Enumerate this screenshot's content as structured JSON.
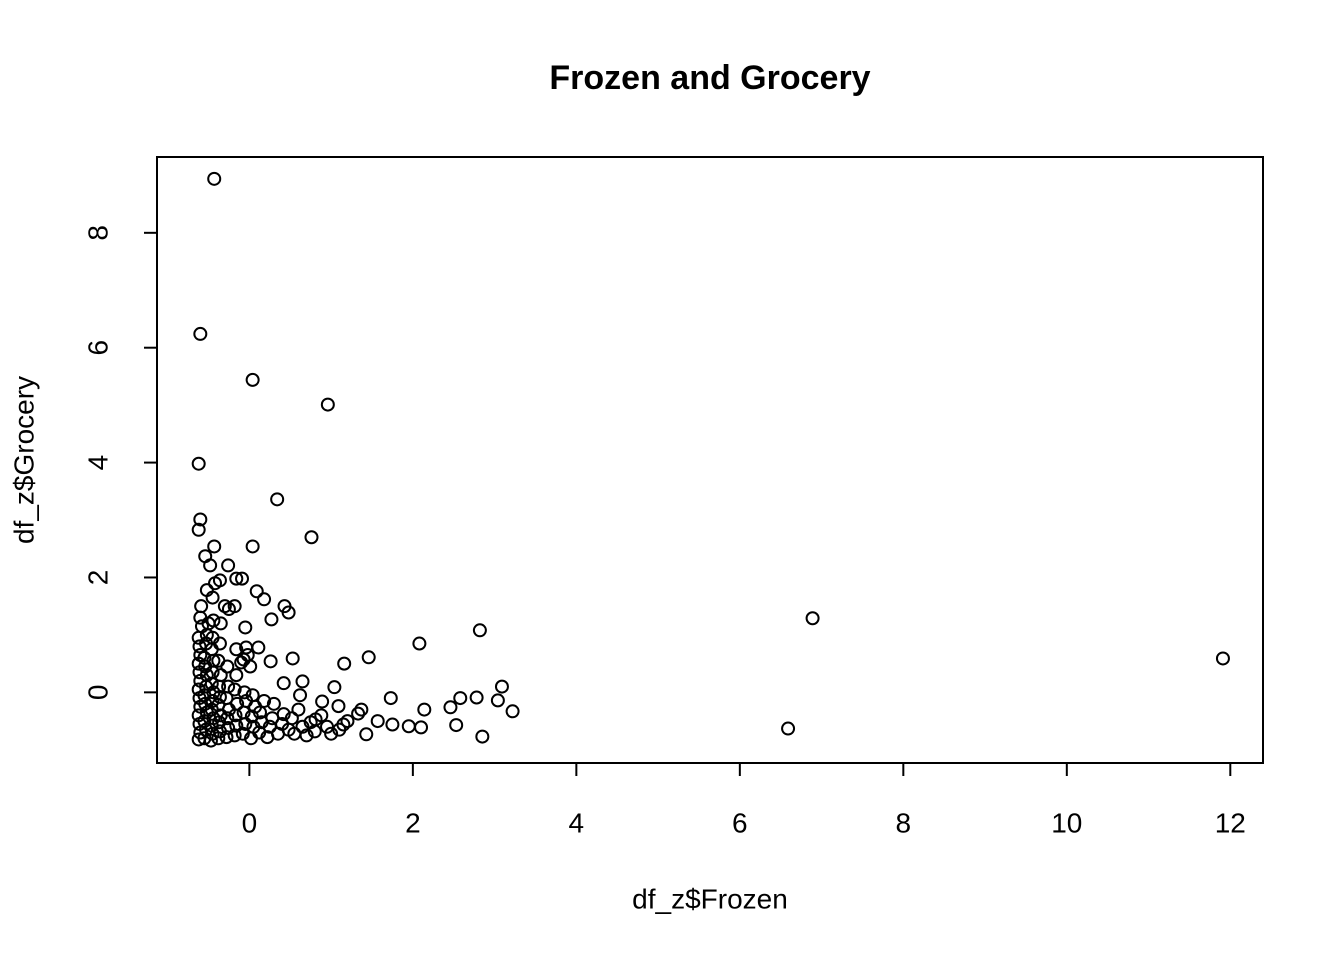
{
  "chart_data": {
    "type": "scatter",
    "title": "Frozen and Grocery",
    "x_label": "df_z$Frozen",
    "y_label": "df_z$Grocery",
    "color": "#000000",
    "x": [
      -0.43,
      -0.6,
      0.04,
      0.96,
      -0.62,
      0.34,
      -0.6,
      -0.62,
      0.76,
      -0.43,
      0.04,
      -0.54,
      -0.26,
      -0.48,
      -0.16,
      -0.09,
      -0.36,
      0.09,
      0.18,
      0.43,
      0.48,
      -0.18,
      0.27,
      2.08,
      2.82,
      6.89,
      11.91,
      6.59,
      1.46,
      1.16,
      0.53,
      3.09,
      2.78,
      2.58,
      1.73,
      3.04,
      3.22,
      2.46,
      2.14,
      2.53,
      2.85,
      1.95,
      2.1,
      1.75,
      1.57,
      1.43,
      1.04,
      1.37,
      1.33,
      1.15,
      1.09,
      0.89,
      0.81,
      0.65,
      0.62,
      0.26,
      0.11,
      0.01,
      -0.07,
      -0.04,
      -0.1,
      -0.16,
      -0.05,
      0.42,
      -0.62,
      -0.6,
      -0.61,
      -0.62,
      -0.6,
      -0.61,
      -0.62,
      -0.6,
      -0.61,
      -0.62,
      -0.6,
      -0.61,
      -0.62,
      -0.58,
      -0.6,
      -0.59,
      -0.55,
      -0.53,
      -0.55,
      -0.52,
      -0.54,
      -0.55,
      -0.53,
      -0.52,
      -0.54,
      -0.55,
      -0.53,
      -0.52,
      -0.5,
      -0.52,
      -0.47,
      -0.45,
      -0.46,
      -0.44,
      -0.46,
      -0.45,
      -0.44,
      -0.46,
      -0.45,
      -0.44,
      -0.46,
      -0.45,
      -0.44,
      -0.45,
      -0.42,
      -0.38,
      -0.36,
      -0.37,
      -0.35,
      -0.38,
      -0.36,
      -0.37,
      -0.35,
      -0.38,
      -0.36,
      -0.35,
      -0.28,
      -0.26,
      -0.27,
      -0.25,
      -0.28,
      -0.26,
      -0.27,
      -0.25,
      -0.3,
      -0.18,
      -0.16,
      -0.17,
      -0.15,
      -0.18,
      -0.16,
      -0.08,
      -0.05,
      -0.07,
      -0.04,
      -0.06,
      -0.02,
      0.02,
      0.05,
      0.03,
      0.07,
      0.04,
      0.12,
      0.15,
      0.13,
      0.18,
      0.22,
      0.25,
      0.28,
      0.3,
      0.35,
      0.4,
      0.42,
      0.48,
      0.52,
      0.55,
      0.6,
      0.65,
      0.7,
      0.75,
      0.8,
      0.88,
      0.95,
      1.0,
      1.1,
      1.2
    ],
    "values": [
      8.94,
      6.24,
      5.44,
      5.01,
      3.98,
      3.36,
      3.01,
      2.83,
      2.7,
      2.54,
      2.54,
      2.37,
      2.21,
      2.21,
      1.98,
      1.98,
      1.95,
      1.76,
      1.62,
      1.5,
      1.39,
      1.5,
      1.27,
      0.85,
      1.08,
      1.29,
      0.59,
      -0.63,
      0.61,
      0.5,
      0.59,
      0.1,
      -0.09,
      -0.1,
      -0.1,
      -0.14,
      -0.33,
      -0.26,
      -0.3,
      -0.57,
      -0.77,
      -0.59,
      -0.61,
      -0.56,
      -0.5,
      -0.73,
      0.09,
      -0.3,
      -0.37,
      -0.56,
      -0.24,
      -0.16,
      -0.47,
      0.19,
      -0.05,
      0.54,
      0.78,
      0.45,
      0.57,
      0.78,
      0.52,
      0.75,
      1.13,
      0.16,
      -0.82,
      -0.7,
      -0.55,
      -0.4,
      -0.25,
      -0.1,
      0.05,
      0.2,
      0.35,
      0.5,
      0.65,
      0.8,
      0.95,
      1.15,
      1.3,
      1.5,
      -0.8,
      -0.65,
      -0.5,
      -0.35,
      -0.2,
      -0.05,
      0.1,
      0.3,
      0.45,
      0.6,
      0.85,
      1.0,
      1.2,
      1.78,
      -0.84,
      -0.72,
      -0.58,
      -0.45,
      -0.3,
      -0.15,
      0.0,
      0.15,
      0.35,
      0.55,
      0.75,
      0.95,
      1.25,
      1.65,
      1.9,
      -0.8,
      -0.68,
      -0.52,
      -0.4,
      -0.22,
      -0.08,
      0.1,
      0.3,
      0.55,
      0.85,
      1.2,
      -0.78,
      -0.62,
      -0.45,
      -0.3,
      -0.1,
      0.1,
      0.45,
      1.45,
      1.5,
      -0.75,
      -0.58,
      -0.4,
      -0.2,
      0.05,
      0.3,
      -0.72,
      -0.55,
      -0.35,
      -0.15,
      0.0,
      0.65,
      -0.8,
      -0.6,
      -0.42,
      -0.25,
      -0.05,
      -0.7,
      -0.52,
      -0.35,
      -0.15,
      -0.78,
      -0.6,
      -0.45,
      -0.2,
      -0.72,
      -0.55,
      -0.38,
      -0.65,
      -0.45,
      -0.72,
      -0.3,
      -0.6,
      -0.75,
      -0.52,
      -0.68,
      -0.4,
      -0.6,
      -0.72,
      -0.65,
      -0.5
    ],
    "xlim": [
      -1.13,
      12.4
    ],
    "ylim": [
      -1.23,
      9.32
    ],
    "xticks": [
      0,
      2,
      4,
      6,
      8,
      10,
      12
    ],
    "yticks": [
      0,
      2,
      4,
      6,
      8
    ],
    "grid": false
  }
}
